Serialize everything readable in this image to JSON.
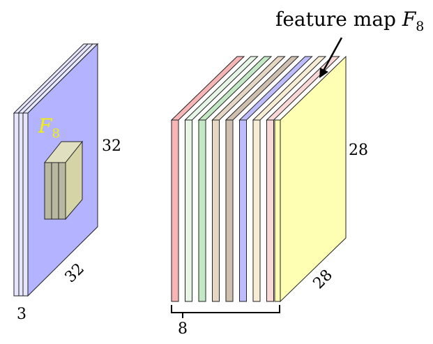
{
  "input_volume": {
    "height_label": "32",
    "width_label": "32",
    "depth_label": "3",
    "filter_label": {
      "letter": "F",
      "subscript": "8"
    },
    "face_color": "#b3b3ff",
    "side_color": "#e6e6ff",
    "filter_front_color": "#d4d4a6",
    "filter_side_color": "#b8b8a0"
  },
  "feature_maps": {
    "count_label": "8",
    "height_label": "28",
    "width_label": "28",
    "callout": {
      "text": "feature map ",
      "letter": "F",
      "subscript": "8"
    },
    "colors": [
      "#f7b5b5",
      "#e6f5e6",
      "#c4e8c4",
      "#e6d6c4",
      "#cfc0b0",
      "#bcbcff",
      "#f7ecd4",
      "#fbd8d8",
      "#ffffb3"
    ]
  }
}
